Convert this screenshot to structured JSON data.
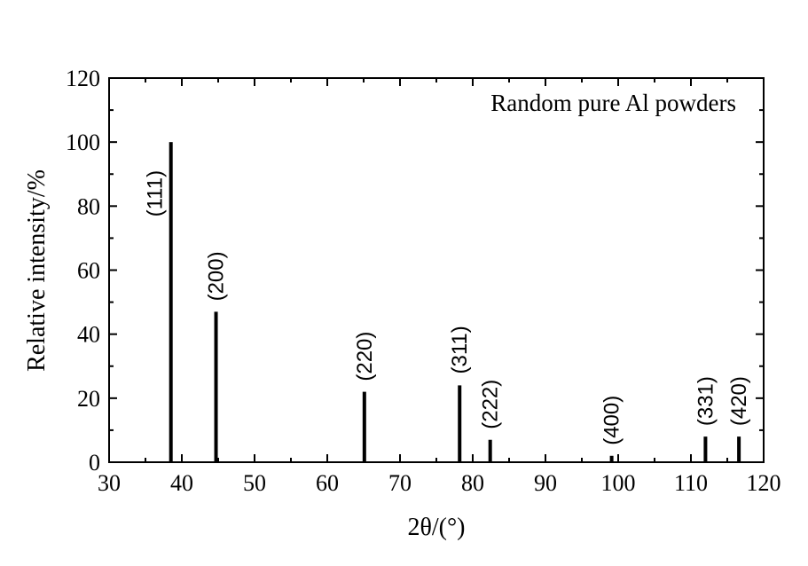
{
  "chart_data": {
    "type": "bar",
    "title": "",
    "annotation": "Random pure Al powders",
    "xlabel": "2θ/(°)",
    "ylabel": "Relative intensity/%",
    "xlim": [
      30,
      120
    ],
    "ylim": [
      0,
      120
    ],
    "x_ticks": [
      "30",
      "40",
      "50",
      "60",
      "70",
      "80",
      "90",
      "100",
      "110",
      "120"
    ],
    "y_ticks": [
      "0",
      "20",
      "40",
      "60",
      "80",
      "100",
      "120"
    ],
    "grid": false,
    "peaks": [
      {
        "x": 38.5,
        "y": 100,
        "label": "(111)"
      },
      {
        "x": 44.7,
        "y": 47,
        "label": "(200)"
      },
      {
        "x": 65.1,
        "y": 22,
        "label": "(220)"
      },
      {
        "x": 78.2,
        "y": 24,
        "label": "(311)"
      },
      {
        "x": 82.4,
        "y": 7,
        "label": "(222)"
      },
      {
        "x": 99.1,
        "y": 2,
        "label": "(400)"
      },
      {
        "x": 112.0,
        "y": 8,
        "label": "(331)"
      },
      {
        "x": 116.6,
        "y": 8,
        "label": "(420)"
      }
    ]
  }
}
